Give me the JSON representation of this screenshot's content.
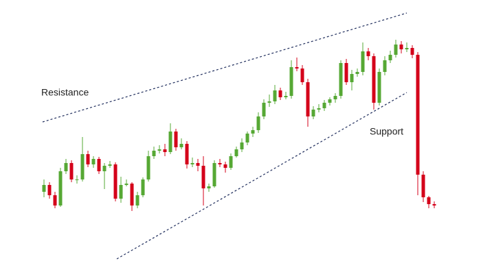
{
  "chart_data": {
    "type": "candlestick",
    "ylim": [
      0,
      400
    ],
    "up_color": "#56a834",
    "down_color": "#d4001a",
    "line_color": "#1f2d5c",
    "candles": [
      [
        120,
        138,
        112,
        130
      ],
      [
        130,
        134,
        110,
        115
      ],
      [
        115,
        120,
        96,
        100
      ],
      [
        100,
        155,
        98,
        150
      ],
      [
        150,
        168,
        146,
        162
      ],
      [
        162,
        166,
        134,
        138
      ],
      [
        138,
        144,
        132,
        138
      ],
      [
        138,
        200,
        135,
        175
      ],
      [
        175,
        180,
        156,
        160
      ],
      [
        160,
        172,
        155,
        168
      ],
      [
        168,
        171,
        146,
        150
      ],
      [
        150,
        162,
        124,
        158
      ],
      [
        158,
        165,
        155,
        160
      ],
      [
        160,
        163,
        106,
        110
      ],
      [
        110,
        142,
        104,
        130
      ],
      [
        130,
        138,
        128,
        132
      ],
      [
        132,
        134,
        92,
        100
      ],
      [
        100,
        120,
        96,
        115
      ],
      [
        115,
        141,
        112,
        138
      ],
      [
        138,
        180,
        135,
        172
      ],
      [
        172,
        186,
        168,
        180
      ],
      [
        180,
        188,
        176,
        182
      ],
      [
        182,
        190,
        172,
        178
      ],
      [
        178,
        220,
        175,
        208
      ],
      [
        208,
        212,
        180,
        185
      ],
      [
        185,
        198,
        182,
        190
      ],
      [
        190,
        194,
        154,
        160
      ],
      [
        160,
        170,
        156,
        162
      ],
      [
        162,
        168,
        150,
        158
      ],
      [
        158,
        172,
        100,
        125
      ],
      [
        125,
        132,
        120,
        128
      ],
      [
        128,
        166,
        126,
        162
      ],
      [
        162,
        168,
        156,
        160
      ],
      [
        160,
        164,
        148,
        155
      ],
      [
        155,
        176,
        152,
        172
      ],
      [
        172,
        186,
        170,
        182
      ],
      [
        182,
        198,
        178,
        192
      ],
      [
        192,
        208,
        188,
        205
      ],
      [
        205,
        215,
        200,
        210
      ],
      [
        210,
        236,
        206,
        230
      ],
      [
        230,
        255,
        226,
        250
      ],
      [
        250,
        262,
        244,
        252
      ],
      [
        252,
        276,
        248,
        268
      ],
      [
        268,
        272,
        254,
        258
      ],
      [
        258,
        266,
        255,
        260
      ],
      [
        260,
        312,
        256,
        302
      ],
      [
        302,
        316,
        296,
        300
      ],
      [
        300,
        305,
        276,
        280
      ],
      [
        280,
        285,
        215,
        230
      ],
      [
        230,
        245,
        226,
        240
      ],
      [
        240,
        248,
        236,
        242
      ],
      [
        242,
        254,
        238,
        250
      ],
      [
        250,
        258,
        246,
        255
      ],
      [
        255,
        264,
        250,
        260
      ],
      [
        260,
        312,
        256,
        308
      ],
      [
        308,
        314,
        276,
        280
      ],
      [
        280,
        298,
        268,
        292
      ],
      [
        292,
        300,
        288,
        295
      ],
      [
        295,
        338,
        290,
        325
      ],
      [
        325,
        330,
        312,
        318
      ],
      [
        318,
        322,
        240,
        250
      ],
      [
        250,
        300,
        246,
        295
      ],
      [
        295,
        318,
        290,
        312
      ],
      [
        312,
        326,
        308,
        320
      ],
      [
        320,
        342,
        316,
        335
      ],
      [
        335,
        340,
        322,
        328
      ],
      [
        328,
        338,
        324,
        330
      ],
      [
        330,
        334,
        315,
        320
      ],
      [
        320,
        324,
        115,
        145
      ],
      [
        145,
        150,
        105,
        112
      ],
      [
        112,
        114,
        96,
        102
      ],
      [
        102,
        106,
        96,
        100
      ]
    ],
    "lines": [
      {
        "label": "Resistance",
        "x": [
          -0.25,
          66
        ],
        "y": [
          222,
          381
        ]
      },
      {
        "label": "Support",
        "x": [
          13.25,
          66
        ],
        "y": [
          22,
          265
        ]
      }
    ]
  }
}
